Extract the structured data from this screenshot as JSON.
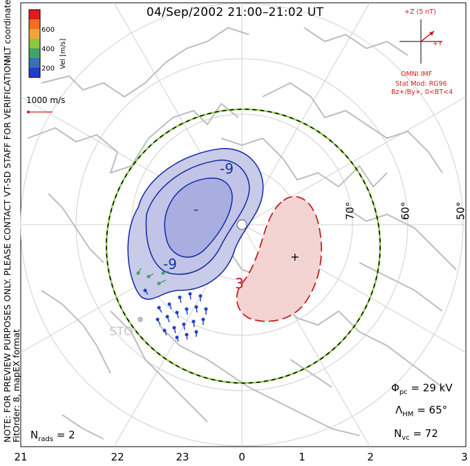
{
  "title": "04/Sep/2002 21:00–21:02 UT",
  "vertical_notes": {
    "coordinates": "MLT coordinates",
    "preview": "NOTE: FOR PREVIEW PURPOSES ONLY. PLEASE CONTACT VT-SD STAFF FOR VERIFICATION.",
    "fit": "FitOrder: 8, mapEX format"
  },
  "velocity_scale": {
    "label": "Vel [m/s]",
    "ticks": [
      "600",
      "400",
      "200"
    ],
    "colors": [
      "#e11b1b",
      "#f0701f",
      "#f2a43a",
      "#8cc63f",
      "#3fa56a",
      "#3a6fb5",
      "#1f3fc9"
    ]
  },
  "reference_vector": {
    "label": "1000 m/s",
    "color": "#d61a1a"
  },
  "imf": {
    "axis_z": "+Z (5 nT)",
    "axis_y": "+Y",
    "source": "OMNI IMF",
    "model": "Stat Mod: RG96",
    "conditions": "Bz+/By+, 0<BT<4",
    "color": "#d61a1a"
  },
  "latitude_labels": [
    "70°",
    "60°",
    "50°"
  ],
  "mlt_labels": [
    "21",
    "22",
    "23",
    "0",
    "1",
    "2",
    "3"
  ],
  "contour_labels": {
    "negative": "-9",
    "negative2": "-9",
    "positive": "3"
  },
  "potential_markers": {
    "min": "–",
    "max": "+"
  },
  "station_label": "STO",
  "stats": {
    "phi_symbol": "Φ",
    "phi_sub": "pc",
    "phi_value": "= 29 kV",
    "lambda_symbol": "Λ",
    "lambda_sub": "HM",
    "lambda_value": "= 65°",
    "nvc_symbol": "N",
    "nvc_sub": "vc",
    "nvc_value": "= 72",
    "nrads_symbol": "N",
    "nrads_sub": "rads",
    "nrads_value": "= 2"
  },
  "colors": {
    "negative_contour": "#1a2fa8",
    "negative_fill": "#c9cce8",
    "negative_core": "#a7acdf",
    "positive_contour": "#c21e1e",
    "positive_fill": "#f4d3d3",
    "boundary_green": "#8fd14f",
    "coast": "#bdbdbd",
    "grid": "#cfcfcf"
  }
}
